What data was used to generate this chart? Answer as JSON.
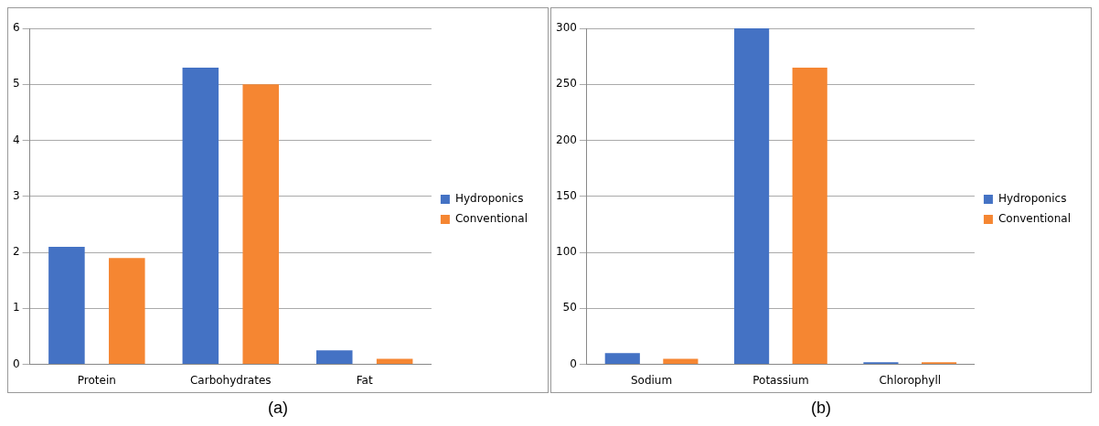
{
  "chart_data": [
    {
      "type": "bar",
      "categories": [
        "Protein",
        "Carbohydrates",
        "Fat"
      ],
      "series": [
        {
          "name": "Hydroponics",
          "color": "#4472c4",
          "values": [
            2.1,
            5.3,
            0.25
          ]
        },
        {
          "name": "Conventional",
          "color": "#f58632",
          "values": [
            1.9,
            5.0,
            0.1
          ]
        }
      ],
      "ylim": [
        0,
        6
      ],
      "yticks": [
        0,
        1,
        2,
        3,
        4,
        5,
        6
      ],
      "grid": "y",
      "legend": "right",
      "annotations": [
        "(a)"
      ]
    },
    {
      "type": "bar",
      "categories": [
        "Sodium",
        "Potassium",
        "Chlorophyll"
      ],
      "series": [
        {
          "name": "Hydroponics",
          "color": "#4472c4",
          "values": [
            10,
            300,
            2
          ]
        },
        {
          "name": "Conventional",
          "color": "#f58632",
          "values": [
            5,
            265,
            2
          ]
        }
      ],
      "ylim": [
        0,
        300
      ],
      "yticks": [
        0,
        50,
        100,
        150,
        200,
        250,
        300
      ],
      "grid": "y",
      "legend": "right",
      "annotations": [
        "(b)"
      ]
    }
  ]
}
